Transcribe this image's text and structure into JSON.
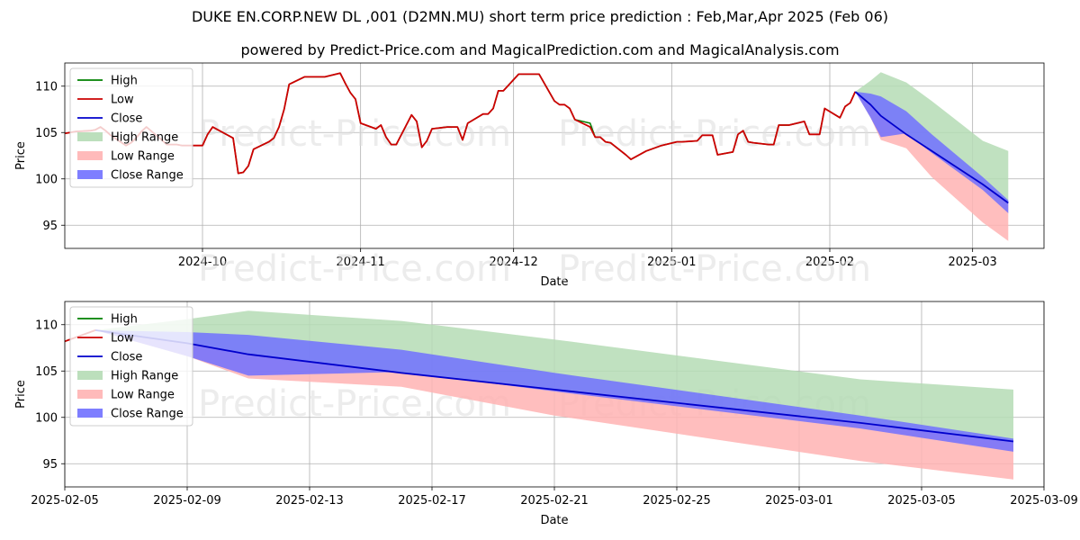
{
  "title": "DUKE EN.CORP.NEW DL ,001 (D2MN.MU) short term price prediction : Feb,Mar,Apr 2025 (Feb 06)",
  "subtitle": "powered by Predict-Price.com and MagicalPrediction.com and MagicalAnalysis.com",
  "watermark": "Predict-Price.com",
  "colors": {
    "high": "#008000",
    "low": "#cc0000",
    "close": "#0000cc",
    "high_range": "#b5dcb5",
    "low_range": "#ffb3b3",
    "close_range": "#7070ff"
  },
  "legend": [
    "High",
    "Low",
    "Close",
    "High Range",
    "Low Range",
    "Close Range"
  ],
  "chart_data": [
    {
      "type": "line",
      "xlabel": "Date",
      "ylabel": "Price",
      "x_range": [
        "2024-09-04",
        "2025-03-15"
      ],
      "ylim": [
        92.5,
        112.5
      ],
      "yticks": [
        95,
        100,
        105,
        110
      ],
      "xticks": [
        "2024-10",
        "2024-11",
        "2024-12",
        "2025-01",
        "2025-02",
        "2025-03"
      ],
      "xtick_dates": [
        "2024-10-01",
        "2024-11-01",
        "2024-12-01",
        "2025-01-01",
        "2025-02-01",
        "2025-03-01"
      ],
      "grid": true,
      "legend_position": "upper-left",
      "history": {
        "dates": [
          "2024-09-04",
          "2024-09-05",
          "2024-09-06",
          "2024-09-09",
          "2024-09-10",
          "2024-09-11",
          "2024-09-12",
          "2024-09-13",
          "2024-09-16",
          "2024-09-17",
          "2024-09-18",
          "2024-09-19",
          "2024-09-20",
          "2024-09-23",
          "2024-09-24",
          "2024-09-25",
          "2024-09-26",
          "2024-09-27",
          "2024-09-30",
          "2024-10-01",
          "2024-10-02",
          "2024-10-03",
          "2024-10-04",
          "2024-10-07",
          "2024-10-08",
          "2024-10-09",
          "2024-10-10",
          "2024-10-11",
          "2024-10-14",
          "2024-10-15",
          "2024-10-16",
          "2024-10-17",
          "2024-10-18",
          "2024-10-21",
          "2024-10-22",
          "2024-10-23",
          "2024-10-24",
          "2024-10-25",
          "2024-10-28",
          "2024-10-29",
          "2024-10-30",
          "2024-10-31",
          "2024-11-01",
          "2024-11-04",
          "2024-11-05",
          "2024-11-06",
          "2024-11-07",
          "2024-11-08",
          "2024-11-11",
          "2024-11-12",
          "2024-11-13",
          "2024-11-14",
          "2024-11-15",
          "2024-11-18",
          "2024-11-19",
          "2024-11-20",
          "2024-11-21",
          "2024-11-22",
          "2024-11-25",
          "2024-11-26",
          "2024-11-27",
          "2024-11-28",
          "2024-11-29",
          "2024-12-02",
          "2024-12-03",
          "2024-12-04",
          "2024-12-05",
          "2024-12-06",
          "2024-12-09",
          "2024-12-10",
          "2024-12-11",
          "2024-12-12",
          "2024-12-13",
          "2024-12-16",
          "2024-12-17",
          "2024-12-18",
          "2024-12-19",
          "2024-12-20",
          "2024-12-23",
          "2024-12-24",
          "2024-12-27",
          "2024-12-30",
          "2025-01-02",
          "2025-01-03",
          "2025-01-06",
          "2025-01-07",
          "2025-01-08",
          "2025-01-09",
          "2025-01-10",
          "2025-01-13",
          "2025-01-14",
          "2025-01-15",
          "2025-01-16",
          "2025-01-17",
          "2025-01-20",
          "2025-01-21",
          "2025-01-22",
          "2025-01-23",
          "2025-01-24",
          "2025-01-27",
          "2025-01-28",
          "2025-01-29",
          "2025-01-30",
          "2025-01-31",
          "2025-02-03",
          "2025-02-04",
          "2025-02-05",
          "2025-02-06"
        ],
        "low": [
          104.9,
          105.0,
          105.1,
          105.2,
          105.3,
          105.6,
          105.2,
          104.7,
          103.6,
          103.9,
          104.4,
          105.1,
          105.6,
          104.2,
          103.7,
          103.7,
          103.7,
          103.6,
          103.6,
          103.6,
          104.8,
          105.6,
          105.3,
          104.4,
          100.6,
          100.7,
          101.4,
          103.2,
          104.0,
          104.4,
          105.6,
          107.5,
          110.2,
          111.0,
          111.0,
          111.0,
          111.0,
          111.0,
          111.4,
          110.3,
          109.3,
          108.6,
          106.0,
          105.4,
          105.8,
          104.5,
          103.7,
          103.7,
          106.9,
          106.2,
          103.4,
          104.1,
          105.4,
          105.6,
          105.6,
          105.6,
          104.2,
          106.0,
          107.0,
          107.0,
          107.6,
          109.5,
          109.5,
          111.3,
          111.3,
          111.3,
          111.3,
          111.3,
          108.4,
          108.0,
          108.0,
          107.6,
          106.4,
          105.6,
          104.5,
          104.5,
          104.0,
          103.9,
          102.6,
          102.1,
          103.0,
          103.6,
          104.0,
          104.0,
          104.1,
          104.7,
          104.7,
          104.7,
          102.6,
          102.9,
          104.8,
          105.2,
          104.0,
          103.9,
          103.7,
          103.7,
          105.8,
          105.8,
          105.8,
          106.2,
          104.8,
          104.8,
          104.8,
          107.6,
          106.6,
          107.8,
          108.2,
          109.4
        ],
        "high": [
          104.9,
          105.0,
          105.1,
          105.2,
          105.3,
          105.6,
          105.2,
          104.7,
          103.6,
          103.9,
          104.4,
          105.1,
          105.6,
          104.2,
          103.7,
          103.7,
          103.7,
          103.6,
          103.6,
          103.6,
          104.8,
          105.6,
          105.3,
          104.4,
          100.6,
          100.7,
          101.4,
          103.2,
          104.0,
          104.4,
          105.6,
          107.5,
          110.2,
          111.0,
          111.0,
          111.0,
          111.0,
          111.0,
          111.4,
          110.3,
          109.3,
          108.6,
          106.0,
          105.4,
          105.8,
          104.5,
          103.7,
          103.7,
          106.9,
          106.2,
          103.4,
          104.1,
          105.4,
          105.6,
          105.6,
          105.6,
          104.2,
          106.0,
          107.0,
          107.0,
          107.6,
          109.5,
          109.5,
          111.3,
          111.3,
          111.3,
          111.3,
          111.3,
          108.4,
          108.0,
          108.0,
          107.6,
          106.4,
          106.0,
          104.5,
          104.5,
          104.0,
          103.9,
          102.6,
          102.1,
          103.0,
          103.6,
          104.0,
          104.0,
          104.1,
          104.7,
          104.7,
          104.7,
          102.6,
          102.9,
          104.8,
          105.2,
          104.0,
          103.9,
          103.7,
          103.7,
          105.8,
          105.8,
          105.8,
          106.2,
          104.8,
          104.8,
          104.8,
          107.6,
          106.6,
          107.8,
          108.2,
          109.4
        ]
      },
      "forecast": {
        "dates": [
          "2025-02-06",
          "2025-02-09",
          "2025-02-11",
          "2025-02-16",
          "2025-02-21",
          "2025-03-03",
          "2025-03-08"
        ],
        "close": [
          109.4,
          108.0,
          106.8,
          104.8,
          103.0,
          99.4,
          97.4
        ],
        "close_low": [
          109.4,
          106.6,
          104.5,
          104.9,
          102.8,
          98.8,
          96.3
        ],
        "close_high": [
          109.4,
          109.2,
          108.9,
          107.3,
          104.8,
          100.2,
          97.7
        ],
        "low_range_low": [
          109.4,
          106.6,
          104.2,
          103.3,
          100.2,
          95.3,
          93.3
        ],
        "high_range_high": [
          109.4,
          110.6,
          111.5,
          110.4,
          108.4,
          104.1,
          103.0
        ]
      }
    },
    {
      "type": "line",
      "xlabel": "Date",
      "ylabel": "Price",
      "x_range": [
        "2025-02-05",
        "2025-03-09"
      ],
      "ylim": [
        92.5,
        112.5
      ],
      "yticks": [
        95,
        100,
        105,
        110
      ],
      "xticks": [
        "2025-02-05",
        "2025-02-09",
        "2025-02-13",
        "2025-02-17",
        "2025-02-21",
        "2025-02-25",
        "2025-03-01",
        "2025-03-05",
        "2025-03-09"
      ],
      "grid": true,
      "legend_position": "upper-left"
    }
  ]
}
